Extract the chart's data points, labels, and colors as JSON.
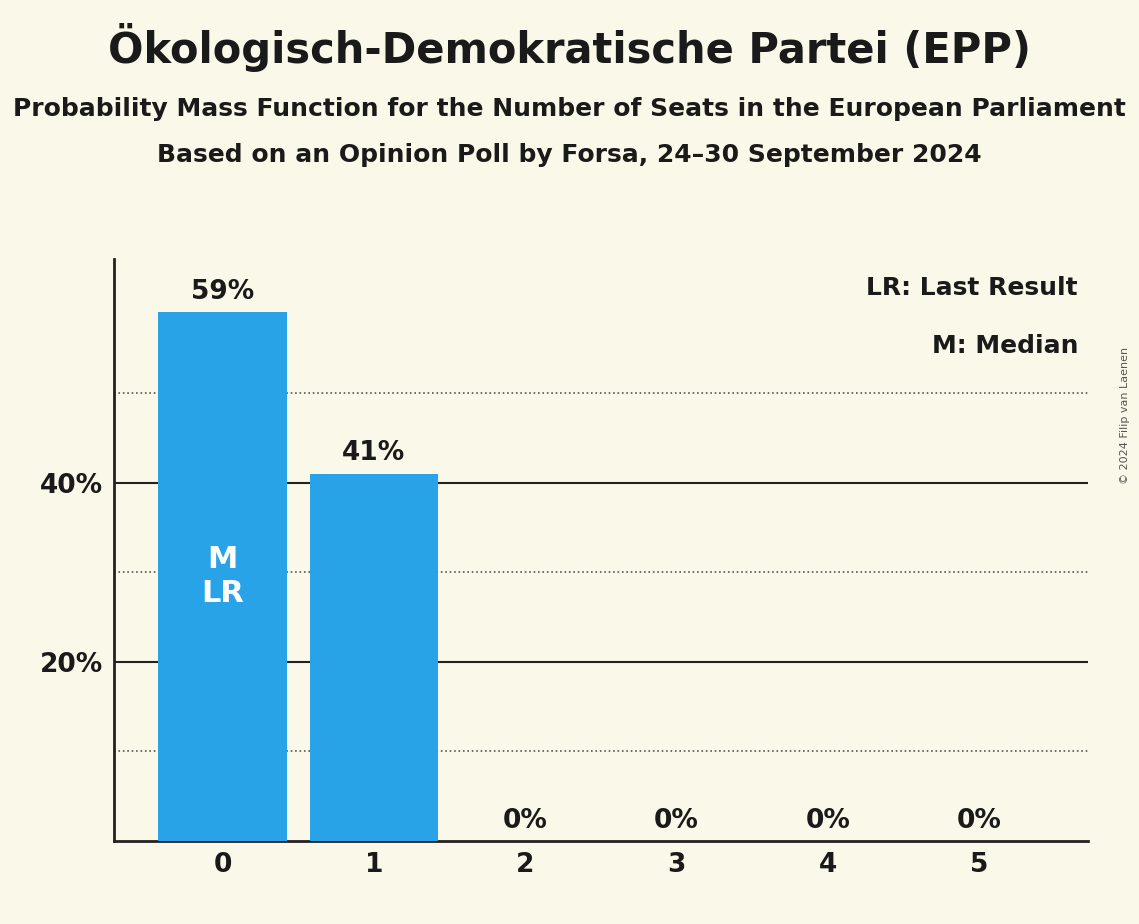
{
  "title": "Ökologisch-Demokratische Partei (EPP)",
  "subtitle1": "Probability Mass Function for the Number of Seats in the European Parliament",
  "subtitle2": "Based on an Opinion Poll by Forsa, 24–30 September 2024",
  "copyright": "© 2024 Filip van Laenen",
  "categories": [
    0,
    1,
    2,
    3,
    4,
    5
  ],
  "values": [
    0.59,
    0.41,
    0.0,
    0.0,
    0.0,
    0.0
  ],
  "bar_color": "#29a3e8",
  "bar_labels": [
    "59%",
    "41%",
    "0%",
    "0%",
    "0%",
    "0%"
  ],
  "background_color": "#faf8e8",
  "text_color": "#1a1a1a",
  "legend_lr": "LR: Last Result",
  "legend_m": "M: Median",
  "ylim": [
    0,
    0.65
  ],
  "solid_lines": [
    0.2,
    0.4
  ],
  "dotted_lines": [
    0.1,
    0.3,
    0.5
  ],
  "title_fontsize": 30,
  "subtitle_fontsize": 18,
  "bar_label_fontsize": 19,
  "axis_tick_fontsize": 19,
  "legend_fontsize": 18,
  "inner_label_fontsize": 22,
  "copyright_fontsize": 8
}
